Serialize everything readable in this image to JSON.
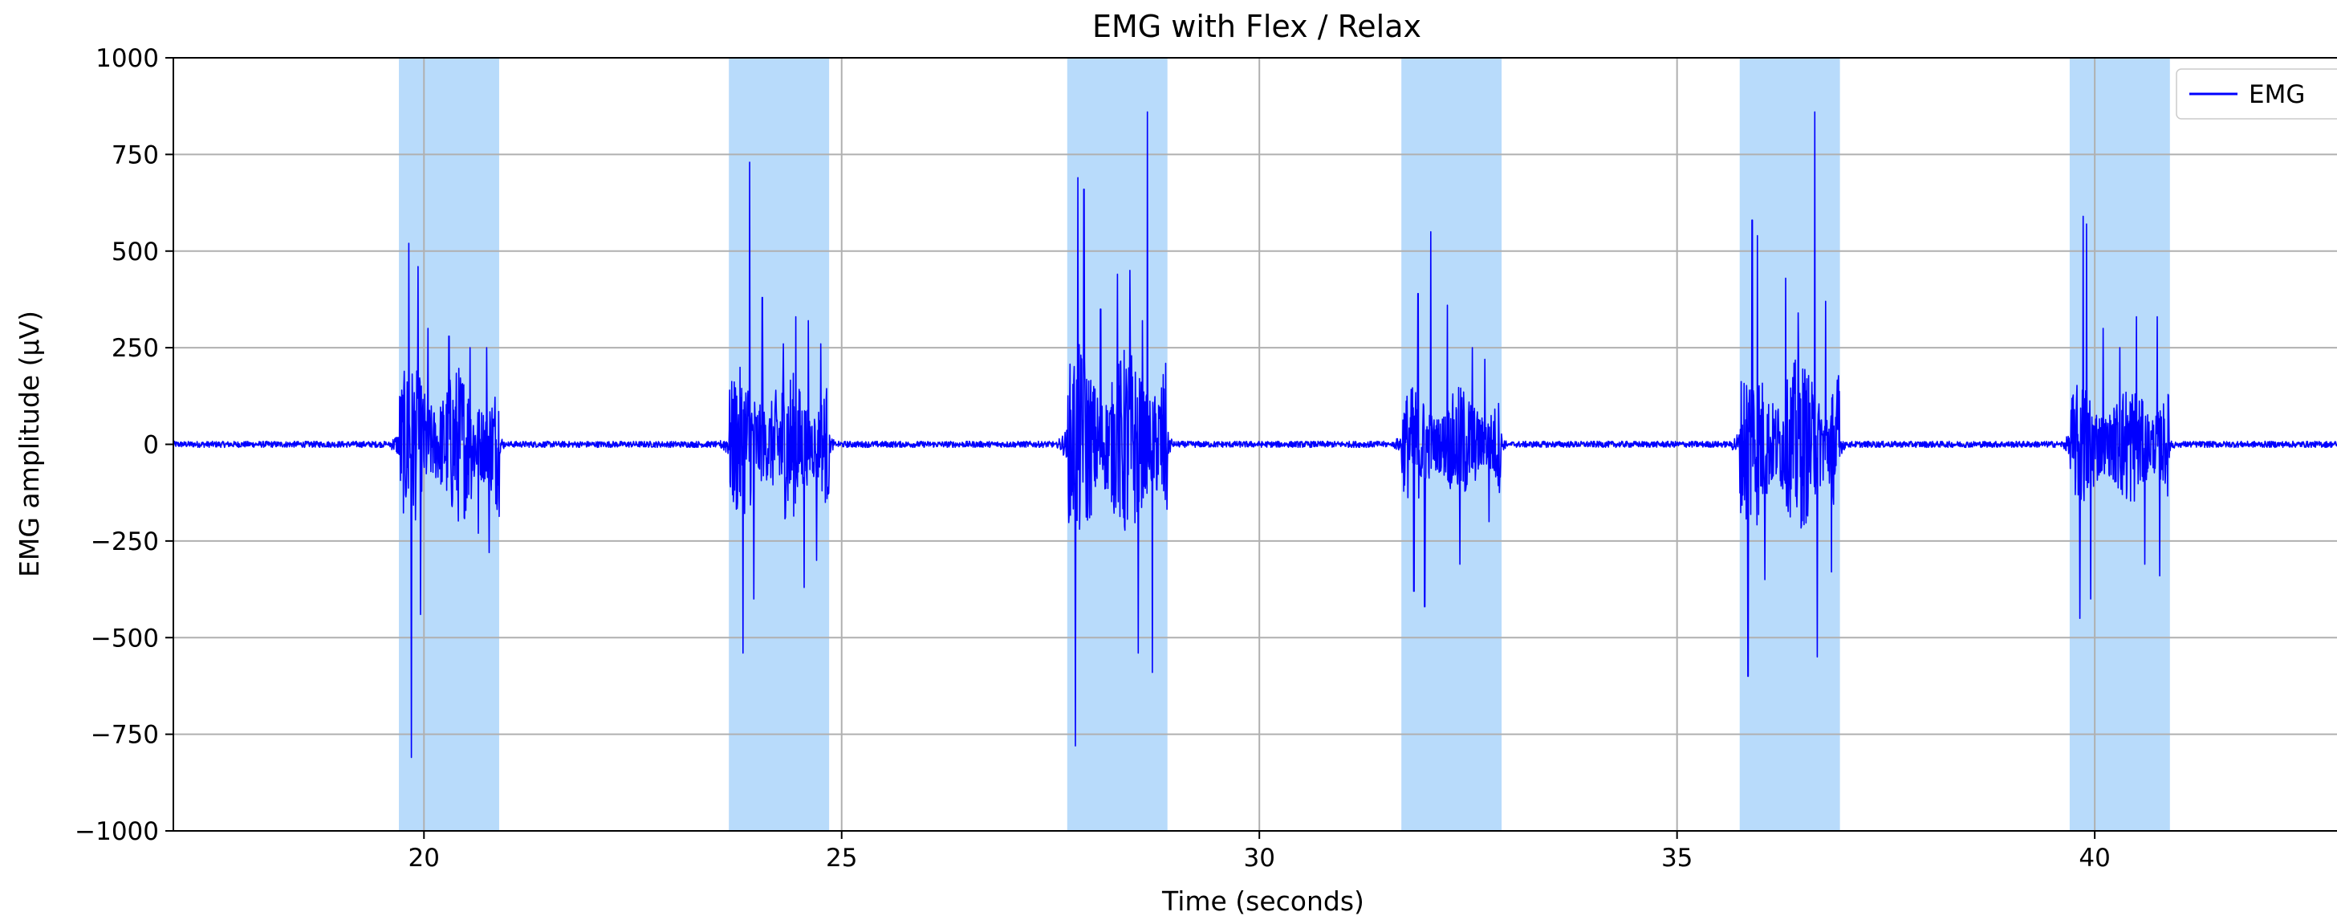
{
  "chart_data": {
    "type": "line",
    "title": "EMG with Flex / Relax",
    "xlabel": "Time (seconds)",
    "ylabel": "EMG amplitude (µV)",
    "xlim": [
      17.0,
      42.9
    ],
    "ylim": [
      -1000,
      1000
    ],
    "grid": true,
    "legend_placement": "top-right",
    "x_ticks": [
      20,
      25,
      30,
      35,
      40
    ],
    "x_tick_labels": [
      "20",
      "25",
      "30",
      "35",
      "40"
    ],
    "y_ticks": [
      1000,
      750,
      500,
      250,
      0,
      -250,
      -500,
      -750,
      -1000
    ],
    "y_tick_labels": [
      "1000",
      "750",
      "500",
      "250",
      "0",
      "−250",
      "−500",
      "−750",
      "−1000"
    ],
    "flex_intervals": [
      [
        19.7,
        20.9
      ],
      [
        23.65,
        24.85
      ],
      [
        27.7,
        28.9
      ],
      [
        31.7,
        32.9
      ],
      [
        35.75,
        36.95
      ],
      [
        39.7,
        40.9
      ]
    ],
    "series": [
      {
        "name": "EMG",
        "color": "#0000ff",
        "bursts": [
          {
            "start": 19.7,
            "end": 20.9,
            "max": 520,
            "min": -810,
            "peaks": [
              [
                19.82,
                520
              ],
              [
                19.85,
                -810
              ],
              [
                19.93,
                460
              ],
              [
                19.96,
                -440
              ],
              [
                20.05,
                300
              ],
              [
                20.3,
                280
              ],
              [
                20.55,
                250
              ],
              [
                20.65,
                -230
              ],
              [
                20.75,
                250
              ],
              [
                20.78,
                -280
              ]
            ]
          },
          {
            "start": 23.65,
            "end": 24.85,
            "max": 730,
            "min": -540,
            "peaks": [
              [
                23.82,
                -540
              ],
              [
                23.9,
                730
              ],
              [
                23.95,
                -400
              ],
              [
                24.05,
                380
              ],
              [
                24.3,
                260
              ],
              [
                24.45,
                330
              ],
              [
                24.6,
                320
              ],
              [
                24.55,
                -370
              ],
              [
                24.75,
                260
              ],
              [
                24.7,
                -300
              ]
            ]
          },
          {
            "start": 27.7,
            "end": 28.9,
            "max": 860,
            "min": -780,
            "peaks": [
              [
                27.8,
                -780
              ],
              [
                27.83,
                690
              ],
              [
                27.9,
                660
              ],
              [
                28.1,
                350
              ],
              [
                28.3,
                440
              ],
              [
                28.45,
                450
              ],
              [
                28.55,
                -540
              ],
              [
                28.66,
                860
              ],
              [
                28.72,
                -590
              ],
              [
                28.6,
                320
              ]
            ]
          },
          {
            "start": 31.7,
            "end": 32.9,
            "max": 550,
            "min": -420,
            "peaks": [
              [
                31.85,
                -380
              ],
              [
                31.9,
                390
              ],
              [
                31.98,
                -420
              ],
              [
                32.05,
                550
              ],
              [
                32.25,
                360
              ],
              [
                32.4,
                -310
              ],
              [
                32.55,
                250
              ],
              [
                32.7,
                220
              ],
              [
                32.75,
                -200
              ]
            ]
          },
          {
            "start": 35.75,
            "end": 36.95,
            "max": 860,
            "min": -600,
            "peaks": [
              [
                35.85,
                -600
              ],
              [
                35.9,
                580
              ],
              [
                35.96,
                540
              ],
              [
                36.05,
                -350
              ],
              [
                36.3,
                430
              ],
              [
                36.45,
                340
              ],
              [
                36.65,
                860
              ],
              [
                36.68,
                -550
              ],
              [
                36.78,
                370
              ],
              [
                36.85,
                -330
              ]
            ]
          },
          {
            "start": 39.7,
            "end": 40.9,
            "max": 590,
            "min": -450,
            "peaks": [
              [
                39.82,
                -450
              ],
              [
                39.86,
                590
              ],
              [
                39.9,
                570
              ],
              [
                39.95,
                -400
              ],
              [
                40.1,
                300
              ],
              [
                40.3,
                250
              ],
              [
                40.5,
                330
              ],
              [
                40.6,
                -310
              ],
              [
                40.75,
                330
              ],
              [
                40.78,
                -340
              ]
            ]
          }
        ],
        "baseline_noise": 8
      }
    ]
  },
  "colors": {
    "signal": "#0000ff",
    "flex_band": "#b8dbfb",
    "grid": "#b0b0b0",
    "axes": "#000000"
  }
}
